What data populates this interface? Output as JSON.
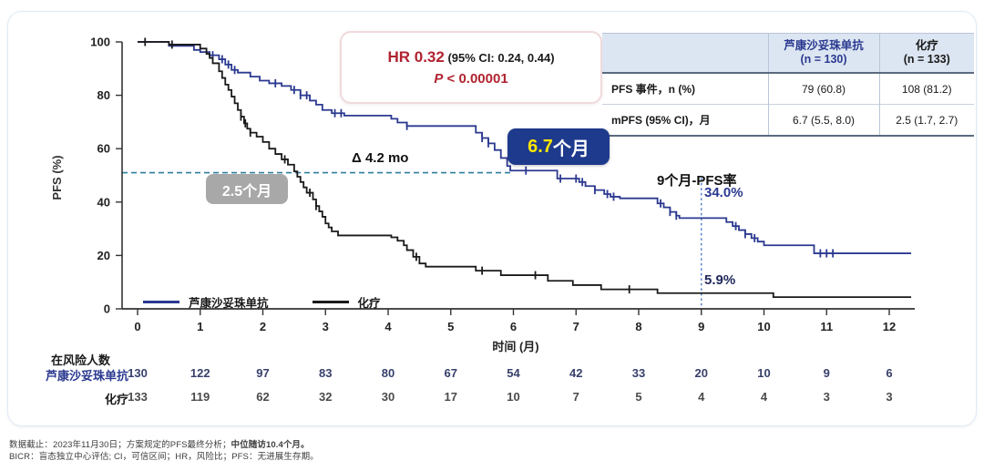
{
  "annotations": {
    "hr_main": "HR 0.32",
    "hr_paren": "(95% CI: 0.24, 0.44)",
    "p_italic": "P",
    "p_rest": " < 0.00001",
    "delta": "Δ 4.2 mo",
    "median_drug_num": "6.7",
    "median_drug_unit": "个月",
    "median_chemo": "2.5个月",
    "pfs9_label": "9个月-PFS率",
    "pfs9_drug": "34.0%",
    "pfs9_chemo": "5.9%"
  },
  "summary_table": {
    "header_drug_line1": "芦康沙妥珠单抗",
    "header_drug_line2": "(n = 130)",
    "header_chemo_line1": "化疗",
    "header_chemo_line2": "(n = 133)",
    "rows": [
      {
        "label": "PFS 事件，n (%)",
        "drug": "79 (60.8)",
        "chemo": "108 (81.2)"
      },
      {
        "label": "mPFS (95% CI)，月",
        "drug": "6.7 (5.5, 8.0)",
        "chemo": "2.5 (1.7, 2.7)"
      }
    ]
  },
  "chart_data": {
    "type": "line",
    "subtype": "kaplan-meier-step",
    "title": "",
    "xlabel": "时间 (月)",
    "ylabel": "PFS (%)",
    "xlim": [
      0,
      12.4
    ],
    "ylim": [
      0,
      100
    ],
    "xticks": [
      0,
      1,
      2,
      3,
      4,
      5,
      6,
      7,
      8,
      9,
      10,
      11,
      12
    ],
    "yticks": [
      0,
      20,
      40,
      60,
      80,
      100
    ],
    "grid": false,
    "legend_position": "lower-left-inside",
    "median_reference": {
      "pct": 51,
      "x_end_month": 5.95,
      "color": "#2d7e9f"
    },
    "vline_month": {
      "x": 9,
      "y_top_pct": 49,
      "color": "#4d79c7"
    },
    "series": [
      {
        "name": "芦康沙妥珠单抗",
        "color": "#2b3990",
        "median_months": 6.7,
        "pfs_at_9mo_pct": 34.0,
        "steps": [
          [
            0,
            100
          ],
          [
            0.5,
            98.5
          ],
          [
            0.9,
            97
          ],
          [
            1.0,
            96.2
          ],
          [
            1.15,
            95
          ],
          [
            1.3,
            93.5
          ],
          [
            1.4,
            91.5
          ],
          [
            1.5,
            89.5
          ],
          [
            1.6,
            88.5
          ],
          [
            1.8,
            87
          ],
          [
            1.95,
            85.5
          ],
          [
            2.1,
            84.5
          ],
          [
            2.3,
            83.5
          ],
          [
            2.45,
            82
          ],
          [
            2.6,
            80
          ],
          [
            2.75,
            78
          ],
          [
            2.85,
            76.5
          ],
          [
            2.95,
            74.5
          ],
          [
            3.1,
            73.3
          ],
          [
            3.3,
            72.4
          ],
          [
            4.05,
            71.2
          ],
          [
            4.15,
            69.8
          ],
          [
            4.3,
            68.5
          ],
          [
            5.4,
            66
          ],
          [
            5.5,
            64
          ],
          [
            5.6,
            62
          ],
          [
            5.7,
            59.5
          ],
          [
            5.8,
            56.5
          ],
          [
            5.9,
            53.5
          ],
          [
            5.95,
            51.8
          ],
          [
            6.7,
            48.8
          ],
          [
            7.05,
            47.5
          ],
          [
            7.15,
            46
          ],
          [
            7.3,
            44.5
          ],
          [
            7.45,
            43
          ],
          [
            7.55,
            42
          ],
          [
            7.7,
            41.4
          ],
          [
            8.3,
            39.5
          ],
          [
            8.4,
            38
          ],
          [
            8.5,
            36.3
          ],
          [
            8.6,
            34.9
          ],
          [
            8.65,
            34.0
          ],
          [
            9.4,
            32.5
          ],
          [
            9.5,
            31
          ],
          [
            9.6,
            29.5
          ],
          [
            9.7,
            28
          ],
          [
            9.8,
            26.5
          ],
          [
            9.9,
            25.2
          ],
          [
            10.0,
            23.8
          ],
          [
            10.8,
            20.8
          ],
          [
            12.35,
            20.8
          ]
        ],
        "censor_months": [
          1.2,
          1.35,
          1.45,
          1.55,
          2.2,
          2.5,
          2.6,
          2.7,
          3.15,
          3.25,
          4.3,
          5.5,
          5.6,
          6.2,
          6.75,
          7.0,
          7.1,
          7.3,
          7.5,
          7.6,
          8.35,
          8.5,
          8.6,
          9.55,
          9.7,
          9.85,
          10.9,
          11.0,
          11.1
        ]
      },
      {
        "name": "化疗",
        "color": "#1a1a1a",
        "median_months": 2.5,
        "pfs_at_9mo_pct": 5.9,
        "steps": [
          [
            0,
            100
          ],
          [
            0.5,
            99
          ],
          [
            1.0,
            97.5
          ],
          [
            1.1,
            95.5
          ],
          [
            1.15,
            94
          ],
          [
            1.2,
            92
          ],
          [
            1.3,
            89
          ],
          [
            1.35,
            86.5
          ],
          [
            1.4,
            84
          ],
          [
            1.45,
            82
          ],
          [
            1.5,
            79.5
          ],
          [
            1.55,
            77
          ],
          [
            1.6,
            74.5
          ],
          [
            1.65,
            72
          ],
          [
            1.7,
            69.5
          ],
          [
            1.75,
            67.5
          ],
          [
            1.8,
            66
          ],
          [
            1.9,
            64.5
          ],
          [
            2.0,
            62.5
          ],
          [
            2.1,
            60
          ],
          [
            2.2,
            58
          ],
          [
            2.3,
            56
          ],
          [
            2.4,
            54
          ],
          [
            2.5,
            51.5
          ],
          [
            2.55,
            49.5
          ],
          [
            2.6,
            47.5
          ],
          [
            2.65,
            45.5
          ],
          [
            2.7,
            43.5
          ],
          [
            2.8,
            41
          ],
          [
            2.85,
            38.5
          ],
          [
            2.9,
            36.5
          ],
          [
            2.95,
            34.5
          ],
          [
            3.0,
            32
          ],
          [
            3.05,
            30.5
          ],
          [
            3.1,
            29
          ],
          [
            3.2,
            27.5
          ],
          [
            4.05,
            26.8
          ],
          [
            4.15,
            25.5
          ],
          [
            4.25,
            23.8
          ],
          [
            4.3,
            22
          ],
          [
            4.4,
            19.5
          ],
          [
            4.5,
            17
          ],
          [
            4.6,
            15.8
          ],
          [
            5.4,
            14.3
          ],
          [
            5.8,
            12.6
          ],
          [
            6.55,
            10.5
          ],
          [
            6.95,
            8.9
          ],
          [
            7.4,
            7.3
          ],
          [
            8.3,
            5.9
          ],
          [
            10.15,
            4.4
          ],
          [
            12.35,
            4.4
          ]
        ],
        "censor_months": [
          0.12,
          0.55,
          1.65,
          1.72,
          1.8,
          2.35,
          2.75,
          2.85,
          4.45,
          5.5,
          6.35,
          7.85
        ]
      }
    ]
  },
  "at_risk": {
    "title": "在风险人数",
    "months": [
      0,
      1,
      2,
      3,
      4,
      5,
      6,
      7,
      8,
      9,
      10,
      11,
      12
    ],
    "rows": [
      {
        "label": "芦康沙妥珠单抗",
        "values": [
          130,
          122,
          97,
          83,
          80,
          67,
          54,
          42,
          33,
          20,
          10,
          9,
          6
        ]
      },
      {
        "label": "化疗",
        "values": [
          133,
          119,
          62,
          32,
          30,
          17,
          10,
          7,
          5,
          4,
          4,
          3,
          3
        ]
      }
    ]
  },
  "footnotes": {
    "line1_normal": "数据截止：2023年11月30日；方案规定的PFS最终分析；",
    "line1_bold": "中位随访10.4个月。",
    "line2": "BICR：盲态独立中心评估; CI，可信区间；HR，风险比；PFS：无进展生存期。"
  }
}
